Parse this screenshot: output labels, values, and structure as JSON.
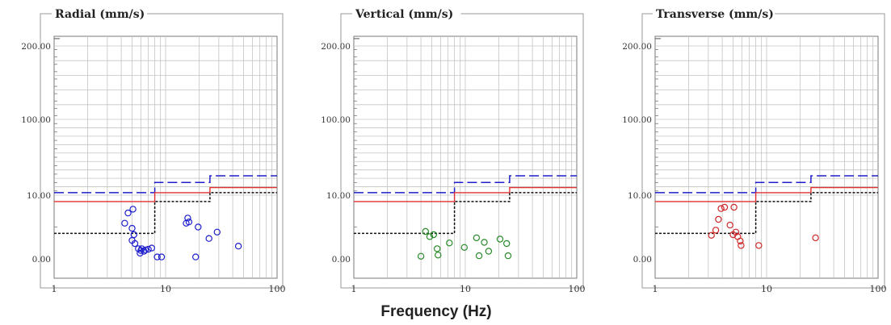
{
  "xlabel": "Frequency (Hz)",
  "chart_data": [
    {
      "type": "scatter",
      "title": "Radial (mm/s)",
      "x_scale": "log",
      "xlim": [
        1,
        100
      ],
      "x_ticks": [
        "1",
        "10",
        "100"
      ],
      "y_ticks": [
        "200.00",
        "100.00",
        "10.00",
        "0.00"
      ],
      "y_tick_values": [
        200,
        100,
        10,
        0
      ],
      "color": "#1f1fcc",
      "points": [
        [
          4.3,
          5.6
        ],
        [
          4.6,
          7.2
        ],
        [
          5.0,
          4.8
        ],
        [
          5.1,
          7.8
        ],
        [
          5.2,
          3.8
        ],
        [
          5.0,
          2.9
        ],
        [
          5.3,
          2.4
        ],
        [
          5.7,
          1.6
        ],
        [
          5.9,
          0.9
        ],
        [
          6.0,
          1.3
        ],
        [
          6.1,
          1.6
        ],
        [
          6.4,
          1.2
        ],
        [
          6.6,
          1.4
        ],
        [
          7.0,
          1.5
        ],
        [
          7.5,
          1.7
        ],
        [
          8.4,
          0.3
        ],
        [
          9.2,
          0.3
        ],
        [
          15.3,
          5.6
        ],
        [
          15.8,
          6.4
        ],
        [
          16.2,
          5.8
        ],
        [
          18.6,
          0.3
        ],
        [
          19.6,
          5.0
        ],
        [
          24.5,
          3.2
        ],
        [
          29.0,
          4.2
        ],
        [
          45.0,
          2.0
        ]
      ],
      "series": [
        {
          "style": "dashed",
          "color": "#1f1fcc",
          "steps": [
            [
              1,
              13
            ],
            [
              8,
              13
            ],
            [
              8,
              25
            ],
            [
              25,
              25
            ],
            [
              25,
              33
            ],
            [
              100,
              33
            ]
          ]
        },
        {
          "style": "solid",
          "color": "#e03030",
          "steps": [
            [
              1,
              9
            ],
            [
              8,
              9
            ],
            [
              8,
              13
            ],
            [
              25,
              13
            ],
            [
              25,
              19
            ],
            [
              100,
              19
            ]
          ]
        },
        {
          "style": "dotted",
          "color": "#111111",
          "steps": [
            [
              1,
              4
            ],
            [
              8,
              4
            ],
            [
              8,
              9
            ],
            [
              25,
              9
            ],
            [
              25,
              13
            ],
            [
              100,
              13
            ]
          ]
        }
      ]
    },
    {
      "type": "scatter",
      "title": "Vertical (mm/s)",
      "x_scale": "log",
      "xlim": [
        1,
        100
      ],
      "x_ticks": [
        "1",
        "10",
        "100"
      ],
      "y_ticks": [
        "200.00",
        "100.00",
        "10.00",
        "0.00"
      ],
      "y_tick_values": [
        200,
        100,
        10,
        0
      ],
      "color": "#2a8a2a",
      "points": [
        [
          4.0,
          0.4
        ],
        [
          4.4,
          4.3
        ],
        [
          4.8,
          3.5
        ],
        [
          5.2,
          3.8
        ],
        [
          5.6,
          1.6
        ],
        [
          5.7,
          0.6
        ],
        [
          7.2,
          2.5
        ],
        [
          9.8,
          1.8
        ],
        [
          12.6,
          3.3
        ],
        [
          13.3,
          0.5
        ],
        [
          14.8,
          2.6
        ],
        [
          16.2,
          1.2
        ],
        [
          20.5,
          3.1
        ],
        [
          23.5,
          2.4
        ],
        [
          24.2,
          0.5
        ]
      ],
      "series": [
        {
          "style": "dashed",
          "color": "#1f1fcc",
          "steps": [
            [
              1,
              13
            ],
            [
              8,
              13
            ],
            [
              8,
              25
            ],
            [
              25,
              25
            ],
            [
              25,
              33
            ],
            [
              100,
              33
            ]
          ]
        },
        {
          "style": "solid",
          "color": "#e03030",
          "steps": [
            [
              1,
              9
            ],
            [
              8,
              9
            ],
            [
              8,
              13
            ],
            [
              25,
              13
            ],
            [
              25,
              19
            ],
            [
              100,
              19
            ]
          ]
        },
        {
          "style": "dotted",
          "color": "#111111",
          "steps": [
            [
              1,
              4
            ],
            [
              8,
              4
            ],
            [
              8,
              9
            ],
            [
              25,
              9
            ],
            [
              25,
              13
            ],
            [
              100,
              13
            ]
          ]
        }
      ]
    },
    {
      "type": "scatter",
      "title": "Transverse (mm/s)",
      "x_scale": "log",
      "xlim": [
        1,
        100
      ],
      "x_ticks": [
        "1",
        "10",
        "100"
      ],
      "y_ticks": [
        "200.00",
        "100.00",
        "10.00",
        "0.00"
      ],
      "y_tick_values": [
        200,
        100,
        10,
        0
      ],
      "color": "#d02a2a",
      "points": [
        [
          3.2,
          3.7
        ],
        [
          3.5,
          4.5
        ],
        [
          3.7,
          6.2
        ],
        [
          3.9,
          7.9
        ],
        [
          4.2,
          8.1
        ],
        [
          4.7,
          5.3
        ],
        [
          5.0,
          3.8
        ],
        [
          5.1,
          8.1
        ],
        [
          5.3,
          4.2
        ],
        [
          5.5,
          3.5
        ],
        [
          5.8,
          2.8
        ],
        [
          5.9,
          2.1
        ],
        [
          8.5,
          2.1
        ],
        [
          27.5,
          3.3
        ]
      ],
      "series": [
        {
          "style": "dashed",
          "color": "#1f1fcc",
          "steps": [
            [
              1,
              13
            ],
            [
              8,
              13
            ],
            [
              8,
              25
            ],
            [
              25,
              25
            ],
            [
              25,
              33
            ],
            [
              100,
              33
            ]
          ]
        },
        {
          "style": "solid",
          "color": "#e03030",
          "steps": [
            [
              1,
              9
            ],
            [
              8,
              9
            ],
            [
              8,
              13
            ],
            [
              25,
              13
            ],
            [
              25,
              19
            ],
            [
              100,
              19
            ]
          ]
        },
        {
          "style": "dotted",
          "color": "#111111",
          "steps": [
            [
              1,
              4
            ],
            [
              8,
              4
            ],
            [
              8,
              9
            ],
            [
              25,
              9
            ],
            [
              25,
              13
            ],
            [
              100,
              13
            ]
          ]
        }
      ]
    }
  ]
}
